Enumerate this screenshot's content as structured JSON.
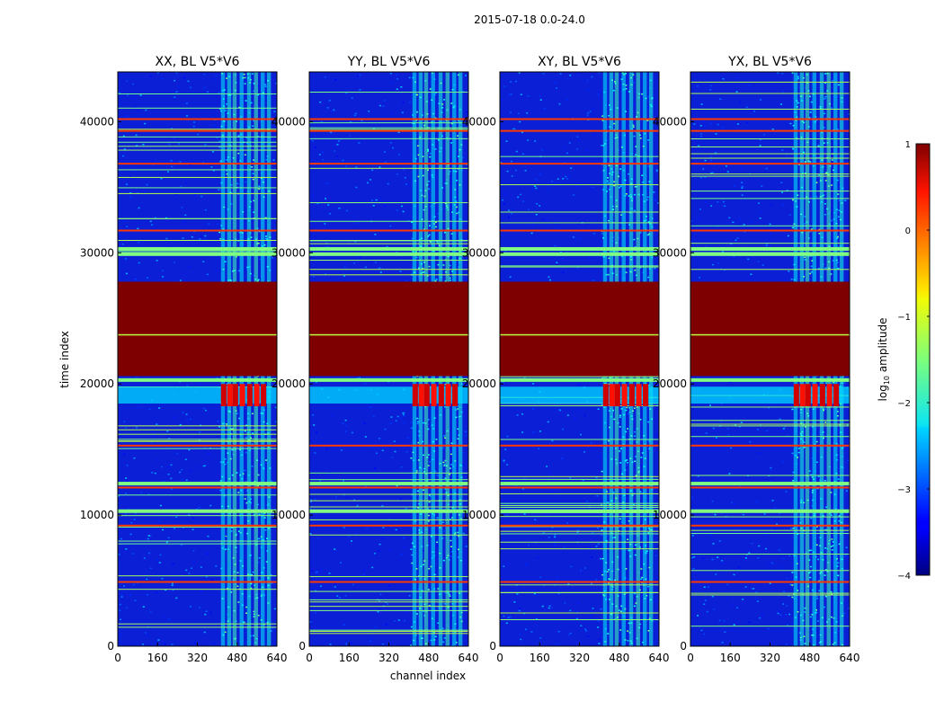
{
  "chart_data": {
    "type": "heatmap",
    "suptitle": "2015-07-18 0.0-24.0",
    "xlabel": "channel index",
    "ylabel": "time index",
    "xlim": [
      0,
      640
    ],
    "ylim": [
      0,
      43800
    ],
    "xticks": [
      "0",
      "160",
      "320",
      "480",
      "640"
    ],
    "xtick_values": [
      0,
      160,
      320,
      480,
      640
    ],
    "yticks": [
      "0",
      "10000",
      "20000",
      "30000",
      "40000"
    ],
    "ytick_values": [
      0,
      10000,
      20000,
      30000,
      40000
    ],
    "panels": [
      {
        "title": "XX, BL V5*V6"
      },
      {
        "title": "YY, BL V5*V6"
      },
      {
        "title": "XY, BL V5*V6"
      },
      {
        "title": "YX, BL V5*V6"
      }
    ],
    "colorbar": {
      "label_main": "log",
      "label_sub": "10",
      "label_rest": " amplitude",
      "vmin": -4,
      "vmax": 1,
      "ticks": [
        1,
        0,
        -1,
        -2,
        -3,
        -4
      ],
      "tick_labels": [
        "1",
        "0",
        "−1",
        "−2",
        "−3",
        "−4"
      ]
    },
    "features": {
      "background_log_amp": -3.2,
      "saturated_block": {
        "t_start": 20600,
        "t_end": 27800,
        "log_amp": 1
      },
      "rfi_channel_band": [
        405,
        610
      ],
      "strong_rfi_rows": [
        18300,
        20000
      ],
      "orange_rows": [
        4900,
        9200,
        12100,
        15300,
        31700,
        36800,
        39300,
        40200
      ],
      "green_rows": [
        10300,
        12400,
        29900,
        30300,
        20300
      ],
      "colors": {
        "background": "#0a1fd6",
        "saturated": "#7f0000",
        "frame": "#000000"
      }
    }
  }
}
